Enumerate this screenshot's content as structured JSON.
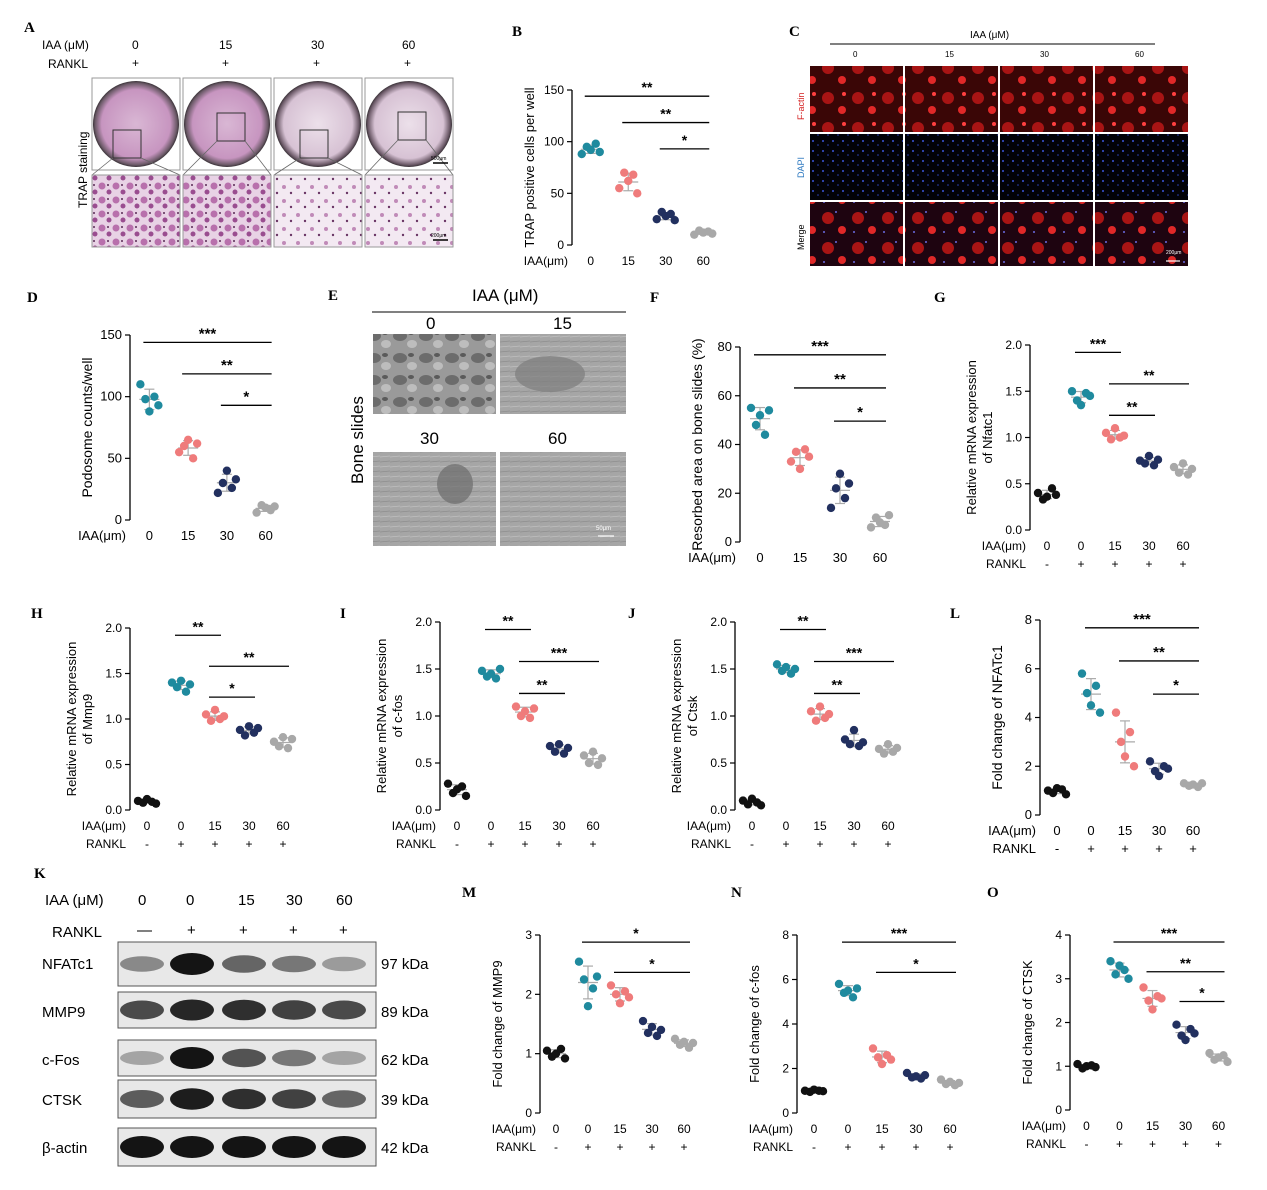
{
  "panel_letters": {
    "A": "A",
    "B": "B",
    "C": "C",
    "D": "D",
    "E": "E",
    "F": "F",
    "G": "G",
    "H": "H",
    "I": "I",
    "J": "J",
    "K": "K",
    "L": "L",
    "M": "M",
    "N": "N",
    "O": "O"
  },
  "panelA": {
    "iaa_label": "IAA (μM)",
    "rankl_label": "RANKL",
    "doses": [
      "0",
      "15",
      "30",
      "60"
    ],
    "rankl": [
      "+",
      "+",
      "+",
      "+"
    ],
    "row_label": "TRAP staining",
    "scale_top": "500μm",
    "scale_bottom": "200μm"
  },
  "panelC": {
    "header": "IAA (μM)",
    "doses": [
      "0",
      "15",
      "30",
      "60"
    ],
    "rows": [
      "F-actin",
      "DAPI",
      "Merge"
    ],
    "scale": "200μm"
  },
  "panelE": {
    "header": "IAA (μM)",
    "top_doses": [
      "0",
      "15"
    ],
    "bottom_doses": [
      "30",
      "60"
    ],
    "side_label": "Bone slides",
    "scale": "50μm"
  },
  "panelK": {
    "iaa_label": "IAA (μM)",
    "rankl_label": "RANKL",
    "doses": [
      "0",
      "0",
      "15",
      "30",
      "60"
    ],
    "rankl": [
      "—",
      "+",
      "+",
      "+",
      "+"
    ],
    "bands": [
      {
        "name": "NFATc1",
        "kda": "97 kDa"
      },
      {
        "name": "MMP9",
        "kda": "89 kDa"
      },
      {
        "name": "c-Fos",
        "kda": "62 kDa"
      },
      {
        "name": "CTSK",
        "kda": "39 kDa"
      },
      {
        "name": "β-actin",
        "kda": "42 kDa"
      }
    ]
  },
  "colors": {
    "black": "#111111",
    "teal": "#1f8a9e",
    "pink": "#ef7b7b",
    "navy": "#22305f",
    "gray": "#a8a8a8"
  },
  "chart_data": [
    {
      "id": "B",
      "type": "scatter",
      "ylabel": "TRAP positive cells per well",
      "xrow_label": "IAA(μm)",
      "categories": [
        "0",
        "15",
        "30",
        "60"
      ],
      "ylim": [
        0,
        150
      ],
      "yticks": [
        0,
        50,
        100,
        150
      ],
      "values": [
        [
          88,
          95,
          92,
          98,
          90
        ],
        [
          55,
          70,
          62,
          68,
          50
        ],
        [
          25,
          32,
          28,
          30,
          24
        ],
        [
          10,
          14,
          12,
          13,
          11
        ]
      ],
      "group_colors": [
        "teal",
        "pink",
        "navy",
        "gray"
      ],
      "sig": [
        {
          "from": 0,
          "to": 3,
          "label": "**"
        },
        {
          "from": 1,
          "to": 3,
          "label": "**"
        },
        {
          "from": 2,
          "to": 3,
          "label": "*"
        }
      ]
    },
    {
      "id": "D",
      "type": "scatter",
      "ylabel": "Podosome counts/well",
      "xrow_label": "IAA(μm)",
      "categories": [
        "0",
        "15",
        "30",
        "60"
      ],
      "ylim": [
        0,
        150
      ],
      "yticks": [
        0,
        50,
        100,
        150
      ],
      "values": [
        [
          110,
          98,
          88,
          100,
          93
        ],
        [
          55,
          60,
          65,
          50,
          62
        ],
        [
          22,
          30,
          40,
          26,
          33
        ],
        [
          6,
          12,
          10,
          8,
          11
        ]
      ],
      "group_colors": [
        "teal",
        "pink",
        "navy",
        "gray"
      ],
      "sig": [
        {
          "from": 0,
          "to": 3,
          "label": "***"
        },
        {
          "from": 1,
          "to": 3,
          "label": "**"
        },
        {
          "from": 2,
          "to": 3,
          "label": "*"
        }
      ]
    },
    {
      "id": "F",
      "type": "scatter",
      "ylabel": "Resorbed area on bone slides (%)",
      "xrow_label": "IAA(μm)",
      "categories": [
        "0",
        "15",
        "30",
        "60"
      ],
      "ylim": [
        0,
        80
      ],
      "yticks": [
        0,
        20,
        40,
        60,
        80
      ],
      "values": [
        [
          55,
          48,
          52,
          44,
          54
        ],
        [
          33,
          37,
          30,
          38,
          35
        ],
        [
          14,
          22,
          28,
          18,
          24
        ],
        [
          6,
          10,
          8,
          7,
          11
        ]
      ],
      "group_colors": [
        "teal",
        "pink",
        "navy",
        "gray"
      ],
      "sig": [
        {
          "from": 0,
          "to": 3,
          "label": "***"
        },
        {
          "from": 1,
          "to": 3,
          "label": "**"
        },
        {
          "from": 2,
          "to": 3,
          "label": "*"
        }
      ]
    },
    {
      "id": "G",
      "type": "scatter",
      "ylabel": "Relative mRNA expression\nof Nfatc1",
      "xrow_label": "IAA(μm)",
      "rankl_label": "RANKL",
      "categories": [
        "0",
        "0",
        "15",
        "30",
        "60"
      ],
      "rankl": [
        "-",
        "+",
        "+",
        "+",
        "+"
      ],
      "ylim": [
        0,
        2.0
      ],
      "yticks": [
        0,
        0.5,
        1.0,
        1.5,
        2.0
      ],
      "values": [
        [
          0.4,
          0.33,
          0.36,
          0.45,
          0.38
        ],
        [
          1.5,
          1.4,
          1.35,
          1.48,
          1.45
        ],
        [
          1.05,
          0.98,
          1.1,
          1.0,
          1.02
        ],
        [
          0.75,
          0.72,
          0.8,
          0.7,
          0.76
        ],
        [
          0.68,
          0.62,
          0.72,
          0.6,
          0.66
        ]
      ],
      "group_colors": [
        "black",
        "teal",
        "pink",
        "navy",
        "gray"
      ],
      "sig": [
        {
          "from": 1,
          "to": 2,
          "label": "***"
        },
        {
          "from": 2,
          "to": 4,
          "label": "**"
        },
        {
          "from": 2,
          "to": 3,
          "label": "**"
        }
      ]
    },
    {
      "id": "H",
      "type": "scatter",
      "ylabel": "Relative mRNA expression\nof Mmp9",
      "xrow_label": "IAA(μm)",
      "rankl_label": "RANKL",
      "categories": [
        "0",
        "0",
        "15",
        "30",
        "60"
      ],
      "rankl": [
        "-",
        "+",
        "+",
        "+",
        "+"
      ],
      "ylim": [
        0,
        2.0
      ],
      "yticks": [
        0,
        0.5,
        1.0,
        1.5,
        2.0
      ],
      "values": [
        [
          0.1,
          0.08,
          0.12,
          0.09,
          0.07
        ],
        [
          1.4,
          1.35,
          1.42,
          1.3,
          1.38
        ],
        [
          1.05,
          0.98,
          1.1,
          1.0,
          1.03
        ],
        [
          0.88,
          0.82,
          0.92,
          0.85,
          0.9
        ],
        [
          0.75,
          0.7,
          0.8,
          0.68,
          0.78
        ]
      ],
      "group_colors": [
        "black",
        "teal",
        "pink",
        "navy",
        "gray"
      ],
      "sig": [
        {
          "from": 1,
          "to": 2,
          "label": "**"
        },
        {
          "from": 2,
          "to": 4,
          "label": "**"
        },
        {
          "from": 2,
          "to": 3,
          "label": "*"
        }
      ]
    },
    {
      "id": "I",
      "type": "scatter",
      "ylabel": "Relative mRNA expression\nof  c-fos",
      "xrow_label": "IAA(μm)",
      "rankl_label": "RANKL",
      "categories": [
        "0",
        "0",
        "15",
        "30",
        "60"
      ],
      "rankl": [
        "-",
        "+",
        "+",
        "+",
        "+"
      ],
      "ylim": [
        0,
        2.0
      ],
      "yticks": [
        0,
        0.5,
        1.0,
        1.5,
        2.0
      ],
      "values": [
        [
          0.28,
          0.18,
          0.22,
          0.25,
          0.15
        ],
        [
          1.48,
          1.42,
          1.45,
          1.4,
          1.5
        ],
        [
          1.1,
          1.0,
          1.05,
          0.98,
          1.08
        ],
        [
          0.68,
          0.62,
          0.7,
          0.6,
          0.66
        ],
        [
          0.58,
          0.5,
          0.62,
          0.48,
          0.55
        ]
      ],
      "group_colors": [
        "black",
        "teal",
        "pink",
        "navy",
        "gray"
      ],
      "sig": [
        {
          "from": 1,
          "to": 2,
          "label": "**"
        },
        {
          "from": 2,
          "to": 4,
          "label": "***"
        },
        {
          "from": 2,
          "to": 3,
          "label": "**"
        }
      ]
    },
    {
      "id": "J",
      "type": "scatter",
      "ylabel": "Relative mRNA expression\nof  Ctsk",
      "xrow_label": "IAA(μm)",
      "rankl_label": "RANKL",
      "categories": [
        "0",
        "0",
        "15",
        "30",
        "60"
      ],
      "rankl": [
        "-",
        "+",
        "+",
        "+",
        "+"
      ],
      "ylim": [
        0,
        2.0
      ],
      "yticks": [
        0,
        0.5,
        1.0,
        1.5,
        2.0
      ],
      "values": [
        [
          0.1,
          0.06,
          0.12,
          0.08,
          0.05
        ],
        [
          1.55,
          1.48,
          1.52,
          1.45,
          1.5
        ],
        [
          1.05,
          0.95,
          1.1,
          0.98,
          1.02
        ],
        [
          0.75,
          0.7,
          0.85,
          0.68,
          0.72
        ],
        [
          0.65,
          0.6,
          0.7,
          0.62,
          0.66
        ]
      ],
      "group_colors": [
        "black",
        "teal",
        "pink",
        "navy",
        "gray"
      ],
      "sig": [
        {
          "from": 1,
          "to": 2,
          "label": "**"
        },
        {
          "from": 2,
          "to": 4,
          "label": "***"
        },
        {
          "from": 2,
          "to": 3,
          "label": "**"
        }
      ]
    },
    {
      "id": "L",
      "type": "scatter",
      "ylabel": "Fold change of NFATc1",
      "xrow_label": "IAA(μm)",
      "rankl_label": "RANKL",
      "categories": [
        "0",
        "0",
        "15",
        "30",
        "60"
      ],
      "rankl": [
        "-",
        "+",
        "+",
        "+",
        "+"
      ],
      "ylim": [
        0,
        8
      ],
      "yticks": [
        0,
        2,
        4,
        6,
        8
      ],
      "values": [
        [
          1.0,
          0.9,
          1.1,
          1.05,
          0.85
        ],
        [
          5.8,
          5.0,
          4.5,
          5.3,
          4.2
        ],
        [
          4.2,
          3.0,
          2.4,
          3.4,
          2.0
        ],
        [
          2.2,
          1.8,
          1.6,
          2.0,
          1.9
        ],
        [
          1.3,
          1.2,
          1.25,
          1.15,
          1.3
        ]
      ],
      "group_colors": [
        "black",
        "teal",
        "pink",
        "navy",
        "gray"
      ],
      "sig": [
        {
          "from": 1,
          "to": 4,
          "label": "***"
        },
        {
          "from": 2,
          "to": 4,
          "label": "**"
        },
        {
          "from": 3,
          "to": 4,
          "label": "*"
        }
      ]
    },
    {
      "id": "M",
      "type": "scatter",
      "ylabel": "Fold change of MMP9",
      "xrow_label": "IAA(μm)",
      "rankl_label": "RANKL",
      "categories": [
        "0",
        "0",
        "15",
        "30",
        "60"
      ],
      "rankl": [
        "-",
        "+",
        "+",
        "+",
        "+"
      ],
      "ylim": [
        0,
        3
      ],
      "yticks": [
        0,
        1,
        2,
        3
      ],
      "values": [
        [
          1.05,
          0.95,
          1.0,
          1.08,
          0.92
        ],
        [
          2.55,
          2.25,
          1.8,
          2.1,
          2.3
        ],
        [
          2.15,
          2.0,
          1.85,
          2.05,
          1.95
        ],
        [
          1.55,
          1.35,
          1.45,
          1.3,
          1.4
        ],
        [
          1.25,
          1.15,
          1.2,
          1.1,
          1.18
        ]
      ],
      "group_colors": [
        "black",
        "teal",
        "pink",
        "navy",
        "gray"
      ],
      "sig": [
        {
          "from": 1,
          "to": 4,
          "label": "*"
        },
        {
          "from": 2,
          "to": 4,
          "label": "*"
        }
      ]
    },
    {
      "id": "N",
      "type": "scatter",
      "ylabel": "Fold change of c-fos",
      "xrow_label": "IAA(μm)",
      "rankl_label": "RANKL",
      "categories": [
        "0",
        "0",
        "15",
        "30",
        "60"
      ],
      "rankl": [
        "-",
        "+",
        "+",
        "+",
        "+"
      ],
      "ylim": [
        0,
        8
      ],
      "yticks": [
        0,
        2,
        4,
        6,
        8
      ],
      "values": [
        [
          1.0,
          0.95,
          1.05,
          1.0,
          0.98
        ],
        [
          5.8,
          5.4,
          5.5,
          5.2,
          5.6
        ],
        [
          2.9,
          2.5,
          2.2,
          2.6,
          2.4
        ],
        [
          1.8,
          1.6,
          1.65,
          1.55,
          1.7
        ],
        [
          1.5,
          1.3,
          1.4,
          1.25,
          1.35
        ]
      ],
      "group_colors": [
        "black",
        "teal",
        "pink",
        "navy",
        "gray"
      ],
      "sig": [
        {
          "from": 1,
          "to": 4,
          "label": "***"
        },
        {
          "from": 2,
          "to": 4,
          "label": "*"
        }
      ]
    },
    {
      "id": "O",
      "type": "scatter",
      "ylabel": "Fold change of CTSK",
      "xrow_label": "IAA(μm)",
      "rankl_label": "RANKL",
      "categories": [
        "0",
        "0",
        "15",
        "30",
        "60"
      ],
      "rankl": [
        "-",
        "+",
        "+",
        "+",
        "+"
      ],
      "ylim": [
        0,
        4
      ],
      "yticks": [
        0,
        1,
        2,
        3,
        4
      ],
      "values": [
        [
          1.05,
          0.95,
          1.0,
          1.02,
          0.98
        ],
        [
          3.4,
          3.1,
          3.3,
          3.2,
          3.0
        ],
        [
          2.8,
          2.5,
          2.3,
          2.6,
          2.55
        ],
        [
          1.95,
          1.7,
          1.6,
          1.85,
          1.75
        ],
        [
          1.3,
          1.15,
          1.2,
          1.25,
          1.1
        ]
      ],
      "group_colors": [
        "black",
        "teal",
        "pink",
        "navy",
        "gray"
      ],
      "sig": [
        {
          "from": 1,
          "to": 4,
          "label": "***"
        },
        {
          "from": 2,
          "to": 4,
          "label": "**"
        },
        {
          "from": 3,
          "to": 4,
          "label": "*"
        }
      ]
    }
  ]
}
